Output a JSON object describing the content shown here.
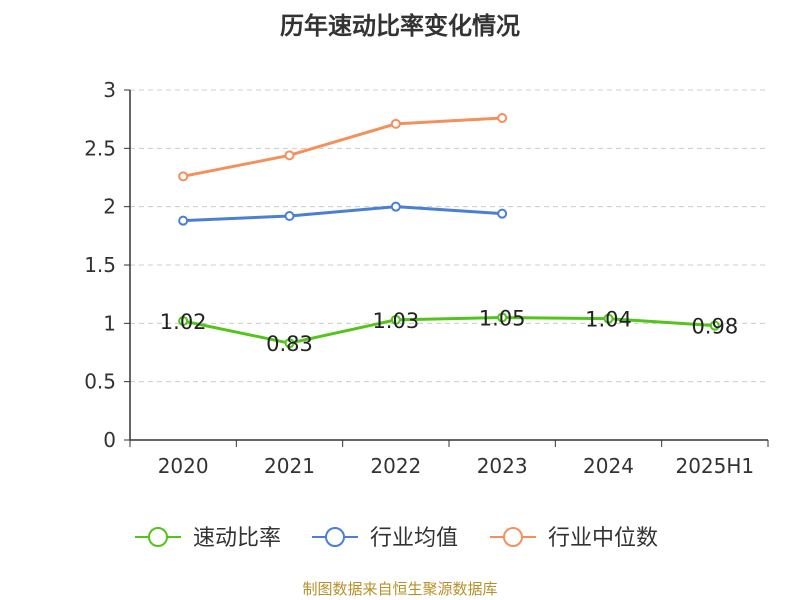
{
  "chart_data": {
    "type": "line",
    "title": "历年速动比率变化情况",
    "xlabel": "",
    "ylabel": "",
    "categories": [
      "2020",
      "2021",
      "2022",
      "2023",
      "2024",
      "2025H1"
    ],
    "ylim": [
      0,
      3
    ],
    "yticks": [
      "0",
      "0.5",
      "1",
      "1.5",
      "2",
      "2.5",
      "3"
    ],
    "ytick_values": [
      0,
      0.5,
      1,
      1.5,
      2,
      2.5,
      3
    ],
    "grid": "horizontal-dashed",
    "legend_position": "bottom",
    "series": [
      {
        "name": "速动比率",
        "color": "#52c41a",
        "values": [
          1.02,
          0.83,
          1.03,
          1.05,
          1.04,
          0.98
        ],
        "labels": [
          "1.02",
          "0.83",
          "1.03",
          "1.05",
          "1.04",
          "0.98"
        ]
      },
      {
        "name": "行业均值",
        "color": "#4a7fd6",
        "values": [
          1.88,
          1.92,
          2.0,
          1.94,
          null,
          null
        ]
      },
      {
        "name": "行业中位数",
        "color": "#f4905a",
        "values": [
          2.26,
          2.44,
          2.71,
          2.76,
          null,
          null
        ]
      }
    ]
  },
  "source_note": "制图数据来自恒生聚源数据库"
}
